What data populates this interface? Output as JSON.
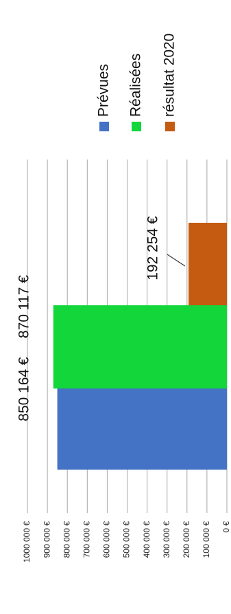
{
  "chart_data": {
    "type": "bar",
    "orientation": "rotated-90-clockwise",
    "title": "",
    "xlabel": "",
    "ylabel": "",
    "ylim": [
      0,
      1000000
    ],
    "tick_step": 100000,
    "tick_labels": [
      "0 €",
      "100 000 €",
      "200 000 €",
      "300 000 €",
      "400 000 €",
      "500 000 €",
      "600 000 €",
      "700 000 €",
      "800 000 €",
      "900 000 €",
      "1000 000 €"
    ],
    "grid": true,
    "legend_position": "top",
    "series": [
      {
        "name": "Prévues",
        "value": 850164,
        "label": "850 164 €",
        "color": "#4472c4"
      },
      {
        "name": "Réalisées",
        "value": 870117,
        "label": "870 117 €",
        "color": "#12d63a"
      },
      {
        "name": "résultat 2020",
        "value": 192254,
        "label": "192 254 €",
        "color": "#c55a11"
      }
    ]
  }
}
